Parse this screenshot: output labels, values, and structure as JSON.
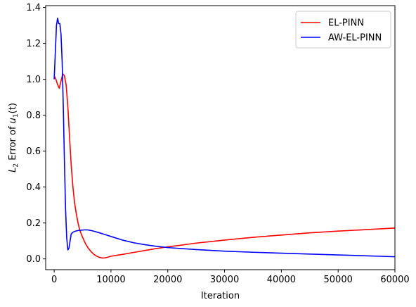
{
  "chart_data": {
    "type": "line",
    "title": "",
    "xlabel": "Iteration",
    "ylabel_prefix": "L",
    "ylabel_sub": "2",
    "ylabel_mid": " Error of ",
    "ylabel_var": "u",
    "ylabel_var_sub": "1",
    "ylabel_suffix": "(t)",
    "xlim": [
      -1500,
      60000
    ],
    "ylim": [
      -0.06,
      1.41
    ],
    "xticks": [
      0,
      10000,
      20000,
      30000,
      40000,
      50000,
      60000
    ],
    "xtick_labels": [
      "0",
      "10000",
      "20000",
      "30000",
      "40000",
      "50000",
      "60000"
    ],
    "yticks": [
      0.0,
      0.2,
      0.4,
      0.6,
      0.8,
      1.0,
      1.2,
      1.4
    ],
    "ytick_labels": [
      "0.0",
      "0.2",
      "0.4",
      "0.6",
      "0.8",
      "1.0",
      "1.2",
      "1.4"
    ],
    "grid": false,
    "legend_position": "top-right",
    "series": [
      {
        "name": "EL-PINN",
        "color": "#ff0000",
        "x": [
          0,
          300,
          600,
          900,
          1200,
          1500,
          1800,
          2100,
          2400,
          2700,
          3000,
          3300,
          3600,
          3900,
          4200,
          4500,
          5000,
          5500,
          6000,
          6500,
          7000,
          7500,
          8000,
          8500,
          9000,
          9500,
          10000,
          11000,
          12000,
          14000,
          16000,
          18000,
          20000,
          22000,
          25000,
          28000,
          30000,
          35000,
          40000,
          45000,
          50000,
          55000,
          60000
        ],
        "y": [
          1.02,
          1.0,
          0.97,
          0.95,
          0.99,
          1.03,
          1.02,
          0.97,
          0.85,
          0.68,
          0.52,
          0.4,
          0.31,
          0.25,
          0.2,
          0.16,
          0.12,
          0.085,
          0.06,
          0.04,
          0.025,
          0.015,
          0.008,
          0.005,
          0.006,
          0.01,
          0.015,
          0.02,
          0.025,
          0.036,
          0.047,
          0.058,
          0.067,
          0.075,
          0.088,
          0.098,
          0.105,
          0.12,
          0.133,
          0.145,
          0.155,
          0.163,
          0.172
        ]
      },
      {
        "name": "AW-EL-PINN",
        "color": "#0000ff",
        "x": [
          0,
          200,
          400,
          600,
          800,
          1000,
          1200,
          1400,
          1600,
          1800,
          2000,
          2200,
          2400,
          2600,
          2800,
          3000,
          3400,
          3800,
          4200,
          4800,
          5500,
          6000,
          6500,
          7000,
          8000,
          9000,
          10000,
          12000,
          14000,
          16000,
          18000,
          20000,
          25000,
          30000,
          35000,
          40000,
          45000,
          50000,
          55000,
          60000
        ],
        "y": [
          1.0,
          1.15,
          1.3,
          1.34,
          1.31,
          1.31,
          1.25,
          1.1,
          0.85,
          0.55,
          0.28,
          0.12,
          0.05,
          0.06,
          0.1,
          0.14,
          0.15,
          0.155,
          0.158,
          0.16,
          0.162,
          0.161,
          0.158,
          0.154,
          0.145,
          0.135,
          0.125,
          0.105,
          0.09,
          0.079,
          0.07,
          0.063,
          0.052,
          0.043,
          0.037,
          0.032,
          0.027,
          0.022,
          0.017,
          0.012
        ]
      }
    ]
  }
}
